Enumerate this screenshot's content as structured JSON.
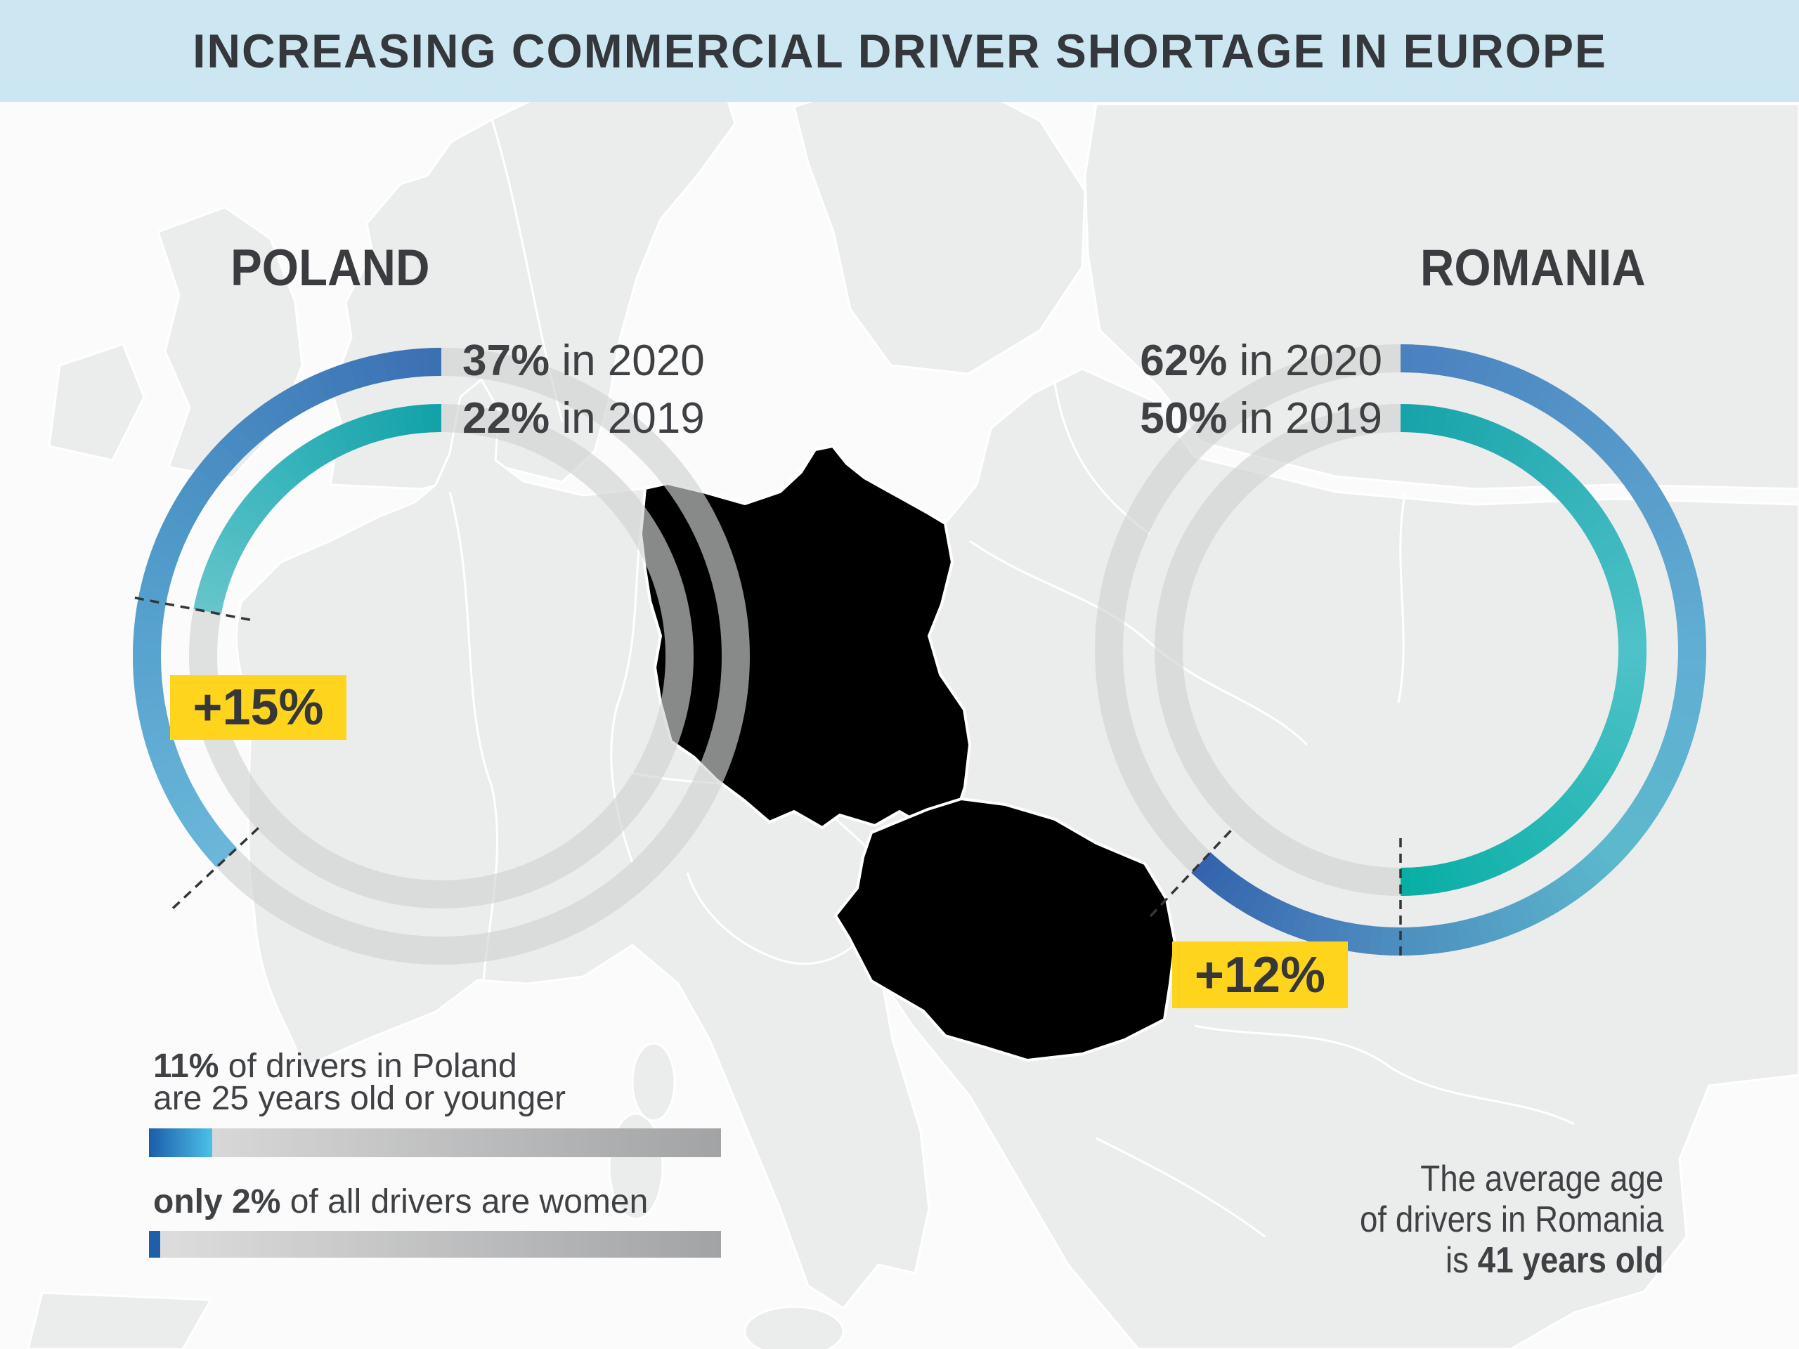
{
  "header": {
    "title": "INCREASING COMMERCIAL DRIVER SHORTAGE IN EUROPE"
  },
  "chart_data": [
    {
      "type": "donut",
      "country": "POLAND",
      "direction": "counterclockwise",
      "series": [
        {
          "name": "2020",
          "value": 37,
          "label": "37%",
          "suffix": " in 2020"
        },
        {
          "name": "2019",
          "value": 22,
          "label": "22%",
          "suffix": " in 2019"
        }
      ],
      "change_badge": "+15%"
    },
    {
      "type": "donut",
      "country": "ROMANIA",
      "direction": "clockwise",
      "series": [
        {
          "name": "2020",
          "value": 62,
          "label": "62%",
          "suffix": " in 2020"
        },
        {
          "name": "2019",
          "value": 50,
          "label": "50%",
          "suffix": " in 2019"
        }
      ],
      "change_badge": "+12%"
    }
  ],
  "stats": [
    {
      "bold": "11%",
      "rest": " of drivers in Poland",
      "line2": "are 25 years old or younger",
      "value": 11,
      "max": 100,
      "fill": [
        "#1b5caa",
        "#4cc1e8"
      ]
    },
    {
      "bold": "only 2%",
      "rest": " of all drivers are women",
      "line2": "",
      "value": 2,
      "max": 100,
      "fill": [
        "#1d5fa8",
        "#1d5fa8"
      ]
    }
  ],
  "note": {
    "line1": "The average age",
    "line2": "of drivers in Romania",
    "line3_prefix": "is ",
    "line3_bold": "41 years old"
  },
  "colors": {
    "header_bg": "#cde7f2",
    "text_dark": "#3a3c3f",
    "accent_yellow": "#fed51c",
    "poland_2020": [
      "#3b6fb3",
      "#4f99c9",
      "#6ab7da"
    ],
    "poland_2019": [
      "#12a1a8",
      "#3cb6bd",
      "#66c5ca"
    ],
    "romania_2020": [
      "#4a80bf",
      "#61aed3",
      "#5cb9cc",
      "#4a85bc",
      "#3363ad"
    ],
    "romania_2019": [
      "#16a3a9",
      "#4fc2c8",
      "#07aea4"
    ],
    "bar_track": [
      "#dedede",
      "#a2a3a5"
    ],
    "ring_track": "rgba(209,211,211,0.65)",
    "country_highlight": "#d8ebf3",
    "land": "#ebedec",
    "sea": "#fafbfa",
    "border": "#ffffff",
    "dash_line": "#333638"
  }
}
